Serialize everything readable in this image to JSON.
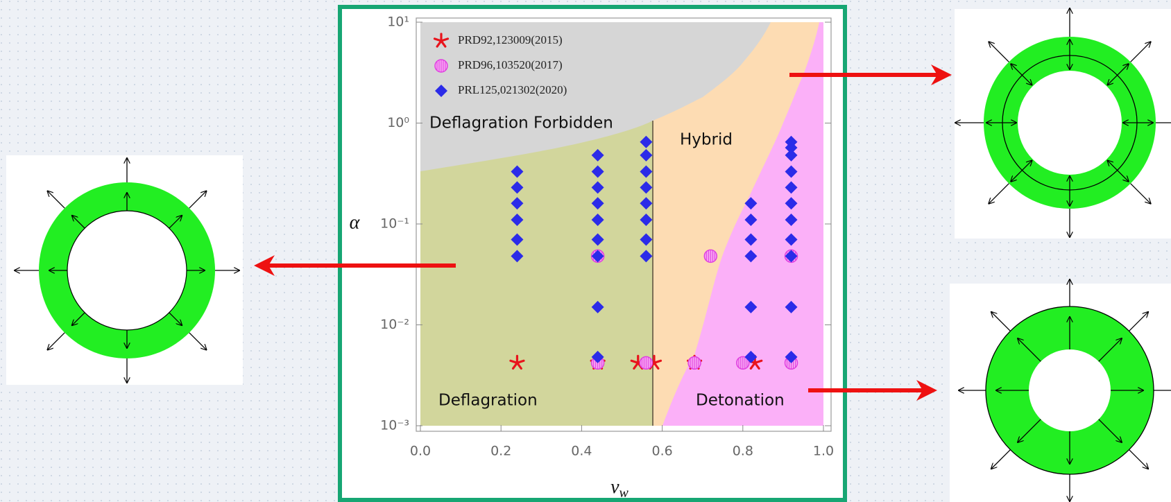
{
  "chart_data": {
    "type": "scatter",
    "xlabel": {
      "main": "v",
      "sub": "w"
    },
    "ylabel": "α",
    "xlim": [
      0,
      1
    ],
    "ylim": [
      0.001,
      10
    ],
    "log_y": true,
    "xticks": [
      {
        "value": 0,
        "label": "0.0"
      },
      0.2,
      0.4,
      0.6,
      0.8,
      {
        "value": 1,
        "label": "1.0"
      }
    ],
    "yticks": [
      {
        "value": 0.001,
        "label": "10⁻³"
      },
      {
        "value": 0.01,
        "label": "10⁻²"
      },
      {
        "value": 0.1,
        "label": "10⁻¹"
      },
      {
        "value": 1,
        "label": "10⁰"
      },
      {
        "value": 10,
        "label": "10¹"
      }
    ],
    "legend": "upper left",
    "annotations": [
      "Deflagration Forbidden",
      "Hybrid",
      "Deflagration",
      "Detonation"
    ],
    "series": [
      {
        "name": "PRD92,123009(2015)",
        "color": "#e8141c",
        "marker": "asterisk",
        "x": [
          0.24,
          0.44,
          0.54,
          0.58,
          0.68,
          0.83
        ],
        "values": [
          0.0042,
          0.0042,
          0.0042,
          0.0042,
          0.0042,
          0.0042
        ]
      },
      {
        "name": "PRD96,103520(2017)",
        "color": "#e040e0",
        "marker": "circle",
        "x": [
          0.44,
          0.44,
          0.56,
          0.68,
          0.72,
          0.8,
          0.92,
          0.92
        ],
        "values": [
          0.048,
          0.0042,
          0.0042,
          0.0042,
          0.048,
          0.0042,
          0.048,
          0.0042
        ]
      },
      {
        "name": "PRL125,021302(2020)",
        "color": "#2b2be8",
        "marker": "diamond",
        "x": [
          0.24,
          0.24,
          0.24,
          0.24,
          0.24,
          0.24,
          0.44,
          0.44,
          0.44,
          0.44,
          0.44,
          0.44,
          0.44,
          0.44,
          0.44,
          0.56,
          0.56,
          0.56,
          0.56,
          0.56,
          0.56,
          0.56,
          0.56,
          0.82,
          0.82,
          0.82,
          0.82,
          0.82,
          0.82,
          0.92,
          0.92,
          0.92,
          0.92,
          0.92,
          0.92,
          0.92,
          0.92,
          0.92,
          0.92,
          0.92
        ],
        "values": [
          0.33,
          0.23,
          0.16,
          0.11,
          0.07,
          0.048,
          0.48,
          0.33,
          0.23,
          0.16,
          0.11,
          0.07,
          0.048,
          0.015,
          0.0048,
          0.65,
          0.48,
          0.33,
          0.23,
          0.16,
          0.11,
          0.07,
          0.048,
          0.16,
          0.11,
          0.07,
          0.048,
          0.015,
          0.0048,
          0.65,
          0.57,
          0.48,
          0.33,
          0.23,
          0.16,
          0.11,
          0.07,
          0.048,
          0.015,
          0.0048
        ]
      }
    ]
  }
}
